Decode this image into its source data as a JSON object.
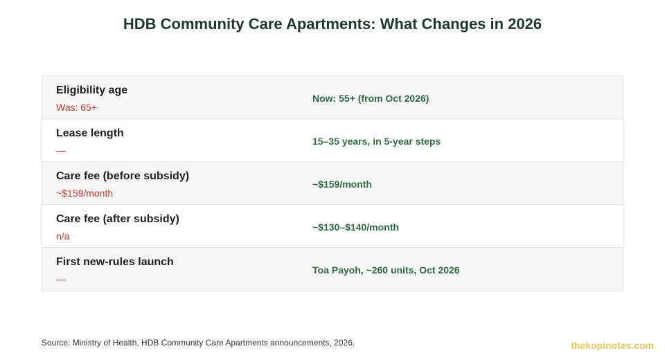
{
  "title": "HDB Community Care Apartments: What Changes in 2026",
  "rows": [
    {
      "label": "Eligibility age",
      "old": "Was: 65+",
      "new": "Now: 55+ (from Oct 2026)"
    },
    {
      "label": "Lease length",
      "old": "—",
      "new": "15–35 years, in 5-year steps"
    },
    {
      "label": "Care fee (before subsidy)",
      "old": "~$159/month",
      "new": "~$159/month"
    },
    {
      "label": "Care fee (after subsidy)",
      "old": "n/a",
      "new": "~$130–$140/month"
    },
    {
      "label": "First new-rules launch",
      "old": "—",
      "new": "Toa Payoh, ~260 units, Oct 2026"
    }
  ],
  "source": "Source: Ministry of Health, HDB Community Care Apartments announcements, 2026.",
  "brand": "thekopinotes.com",
  "colors": {
    "title": "#1b3a27",
    "old_value": "#c0392b",
    "new_value": "#2e6b3f",
    "brand": "#e8c65a"
  }
}
